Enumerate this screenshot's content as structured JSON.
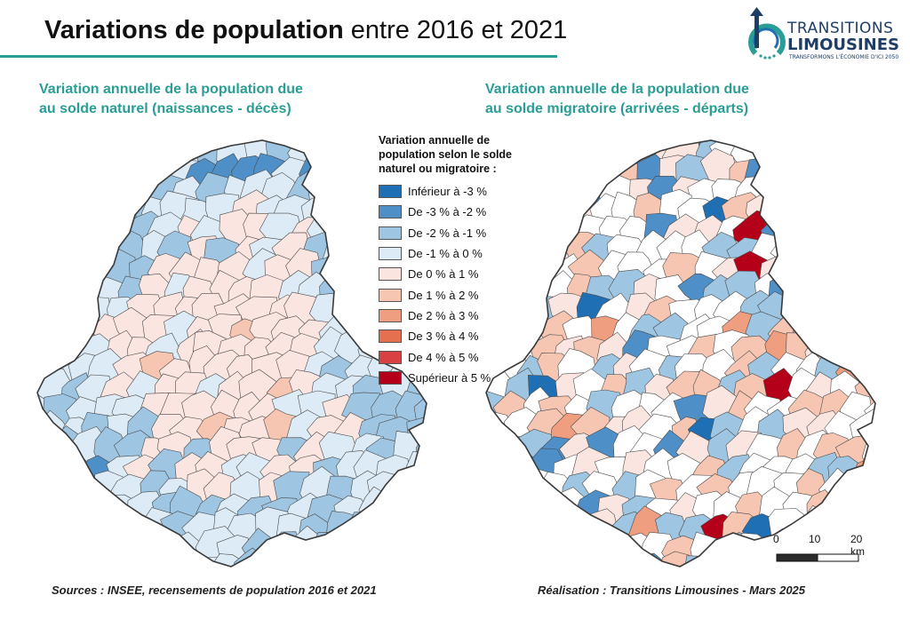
{
  "header": {
    "title_bold": "Variations de population",
    "title_rest": "entre 2016 et 2021"
  },
  "logo": {
    "line1": "TRANSITIONS",
    "line2": "LIMOUSINES",
    "tagline": "TRANSFORMONS L'ÉCONOMIE D'ICI 2050",
    "icon": "rising-arrow-logo-icon"
  },
  "maps": {
    "left_title_l1": "Variation annuelle de la population due",
    "left_title_l2": "au solde naturel (naissances - décès)",
    "right_title_l1": "Variation annuelle de la population due",
    "right_title_l2": "au solde migratoire (arrivées - départs)"
  },
  "legend": {
    "title_l1": "Variation annuelle de",
    "title_l2": "population selon le solde",
    "title_l3": "naturel ou migratoire :",
    "classes": [
      {
        "label": "Inférieur à -3 %",
        "color": "#1f6fb4"
      },
      {
        "label": "De -3 % à -2 %",
        "color": "#4d8fc6"
      },
      {
        "label": "De -2 % à -1 %",
        "color": "#9ec5e1"
      },
      {
        "label": "De -1 % à 0 %",
        "color": "#dcebf6"
      },
      {
        "label": "De 0 % à 1 %",
        "color": "#fbe5e0"
      },
      {
        "label": "De 1 % à 2 %",
        "color": "#f6c6b3"
      },
      {
        "label": "De 2 % à 3 %",
        "color": "#ef9e80"
      },
      {
        "label": "De 3 % à 4 %",
        "color": "#e5704f"
      },
      {
        "label": "De 4 % à 5 %",
        "color": "#d94044"
      },
      {
        "label": "Supérieur à 5 %",
        "color": "#b5001a"
      }
    ]
  },
  "scale": {
    "t0": "0",
    "t1": "10",
    "t2": "20 km"
  },
  "footer": {
    "sources": "Sources : INSEE, recensements de population 2016 et 2021",
    "credit": "Réalisation : Transitions Limousines - Mars 2025"
  },
  "colors": {
    "accent": "#2a9d95",
    "boundary": "#4a4a4a"
  }
}
